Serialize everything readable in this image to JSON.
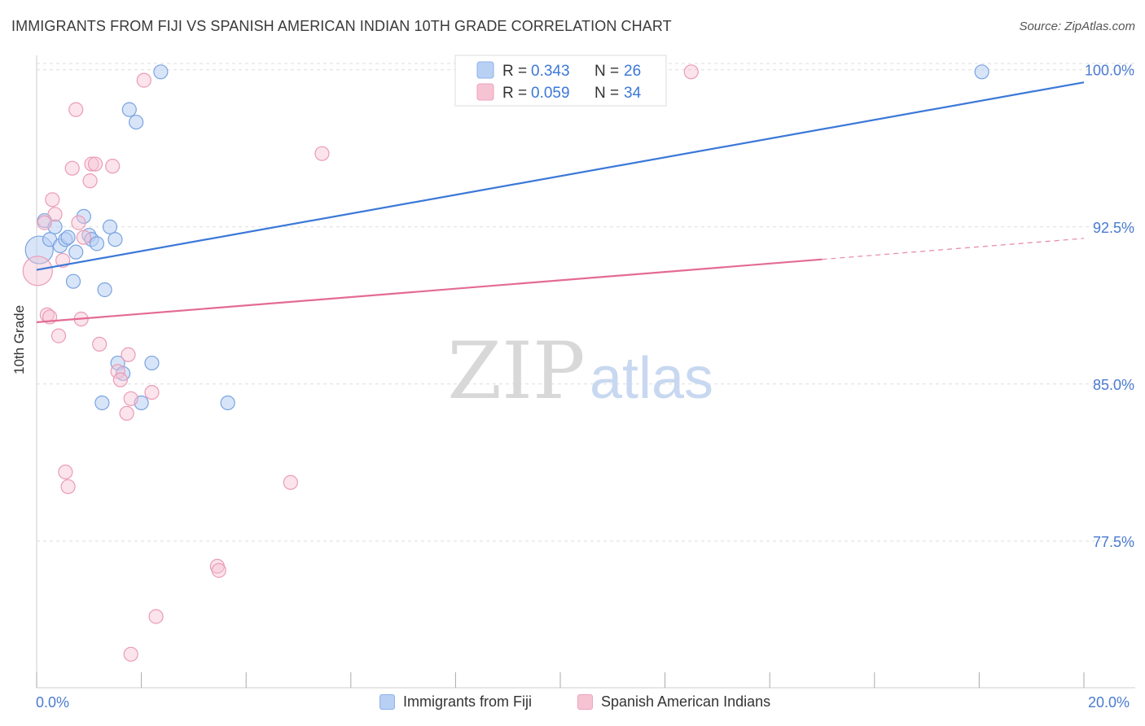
{
  "title": "IMMIGRANTS FROM FIJI VS SPANISH AMERICAN INDIAN 10TH GRADE CORRELATION CHART",
  "source": "Source: ZipAtlas.com",
  "watermark": {
    "zip": "ZIP",
    "atlas": "atlas"
  },
  "colors": {
    "blue": "#3b78d8",
    "blue_fill": "#b8d0f4",
    "pink": "#e46b93",
    "pink_fill": "#f6c3d3",
    "grid": "#dddddd",
    "tick_label": "#4a7bd0"
  },
  "legend_box": {
    "rows": [
      {
        "r_label": "R = ",
        "r_value": "0.343",
        "n_label": "N = ",
        "n_value": "26"
      },
      {
        "r_label": "R = ",
        "r_value": "0.059",
        "n_label": "N = ",
        "n_value": "34"
      }
    ]
  },
  "legend_bottom": {
    "fiji": "Immigrants from Fiji",
    "sai": "Spanish American Indians"
  },
  "chart_data": {
    "type": "scatter",
    "title": "IMMIGRANTS FROM FIJI VS SPANISH AMERICAN INDIAN 10TH GRADE CORRELATION CHART",
    "xlabel": "",
    "ylabel": "10th Grade",
    "xlim": [
      0,
      20
    ],
    "ylim": [
      70.5,
      101.0
    ],
    "x_tick_labels": [
      "0.0%",
      "20.0%"
    ],
    "y_ticks": [
      77.5,
      85.0,
      92.5,
      100.0
    ],
    "y_tick_labels": [
      "77.5%",
      "85.0%",
      "92.5%",
      "100.0%"
    ],
    "grid": true,
    "legend_position": "top-center",
    "series": [
      {
        "name": "Immigrants from Fiji",
        "color": "#3b78d8",
        "R": 0.343,
        "N": 26,
        "trend": {
          "x": [
            0,
            20
          ],
          "y": [
            90.45,
            99.4
          ]
        },
        "points": [
          {
            "x": 0.05,
            "y": 91.4
          },
          {
            "x": 0.15,
            "y": 92.8
          },
          {
            "x": 0.25,
            "y": 91.9
          },
          {
            "x": 0.35,
            "y": 92.5
          },
          {
            "x": 0.45,
            "y": 91.6
          },
          {
            "x": 0.55,
            "y": 91.9
          },
          {
            "x": 0.6,
            "y": 92.0
          },
          {
            "x": 0.7,
            "y": 89.9
          },
          {
            "x": 0.75,
            "y": 91.3
          },
          {
            "x": 0.9,
            "y": 93.0
          },
          {
            "x": 1.0,
            "y": 92.1
          },
          {
            "x": 1.05,
            "y": 91.9
          },
          {
            "x": 1.15,
            "y": 91.7
          },
          {
            "x": 1.3,
            "y": 89.5
          },
          {
            "x": 1.4,
            "y": 92.5
          },
          {
            "x": 1.5,
            "y": 91.9
          },
          {
            "x": 1.55,
            "y": 86.0
          },
          {
            "x": 1.65,
            "y": 85.5
          },
          {
            "x": 1.25,
            "y": 84.1
          },
          {
            "x": 1.77,
            "y": 98.1
          },
          {
            "x": 1.9,
            "y": 97.5
          },
          {
            "x": 2.0,
            "y": 84.1
          },
          {
            "x": 2.2,
            "y": 86.0
          },
          {
            "x": 2.37,
            "y": 99.9
          },
          {
            "x": 3.65,
            "y": 84.1
          },
          {
            "x": 18.05,
            "y": 99.9
          }
        ]
      },
      {
        "name": "Spanish American Indians",
        "color": "#e46b93",
        "R": 0.059,
        "N": 34,
        "trend": {
          "x": [
            0,
            15
          ],
          "y": [
            87.95,
            90.95
          ]
        },
        "trend_dashed": {
          "x": [
            15,
            20
          ],
          "y": [
            90.95,
            91.95
          ]
        },
        "points": [
          {
            "x": 0.02,
            "y": 90.4
          },
          {
            "x": 0.15,
            "y": 92.7
          },
          {
            "x": 0.2,
            "y": 88.3
          },
          {
            "x": 0.25,
            "y": 88.2
          },
          {
            "x": 0.3,
            "y": 93.8
          },
          {
            "x": 0.35,
            "y": 93.1
          },
          {
            "x": 0.42,
            "y": 87.3
          },
          {
            "x": 0.5,
            "y": 90.9
          },
          {
            "x": 0.55,
            "y": 80.8
          },
          {
            "x": 0.6,
            "y": 80.1
          },
          {
            "x": 0.68,
            "y": 95.3
          },
          {
            "x": 0.75,
            "y": 98.1
          },
          {
            "x": 0.8,
            "y": 92.7
          },
          {
            "x": 0.85,
            "y": 88.1
          },
          {
            "x": 0.9,
            "y": 92.0
          },
          {
            "x": 1.02,
            "y": 94.7
          },
          {
            "x": 1.05,
            "y": 95.5
          },
          {
            "x": 1.12,
            "y": 95.5
          },
          {
            "x": 1.2,
            "y": 86.9
          },
          {
            "x": 1.45,
            "y": 95.4
          },
          {
            "x": 1.55,
            "y": 85.6
          },
          {
            "x": 1.6,
            "y": 85.2
          },
          {
            "x": 1.72,
            "y": 83.6
          },
          {
            "x": 1.75,
            "y": 86.4
          },
          {
            "x": 1.8,
            "y": 84.3
          },
          {
            "x": 1.8,
            "y": 72.1
          },
          {
            "x": 2.05,
            "y": 99.5
          },
          {
            "x": 2.2,
            "y": 84.6
          },
          {
            "x": 2.28,
            "y": 73.9
          },
          {
            "x": 3.45,
            "y": 76.3
          },
          {
            "x": 3.48,
            "y": 76.1
          },
          {
            "x": 4.85,
            "y": 80.3
          },
          {
            "x": 5.45,
            "y": 96.0
          },
          {
            "x": 12.5,
            "y": 99.9
          }
        ]
      }
    ]
  }
}
